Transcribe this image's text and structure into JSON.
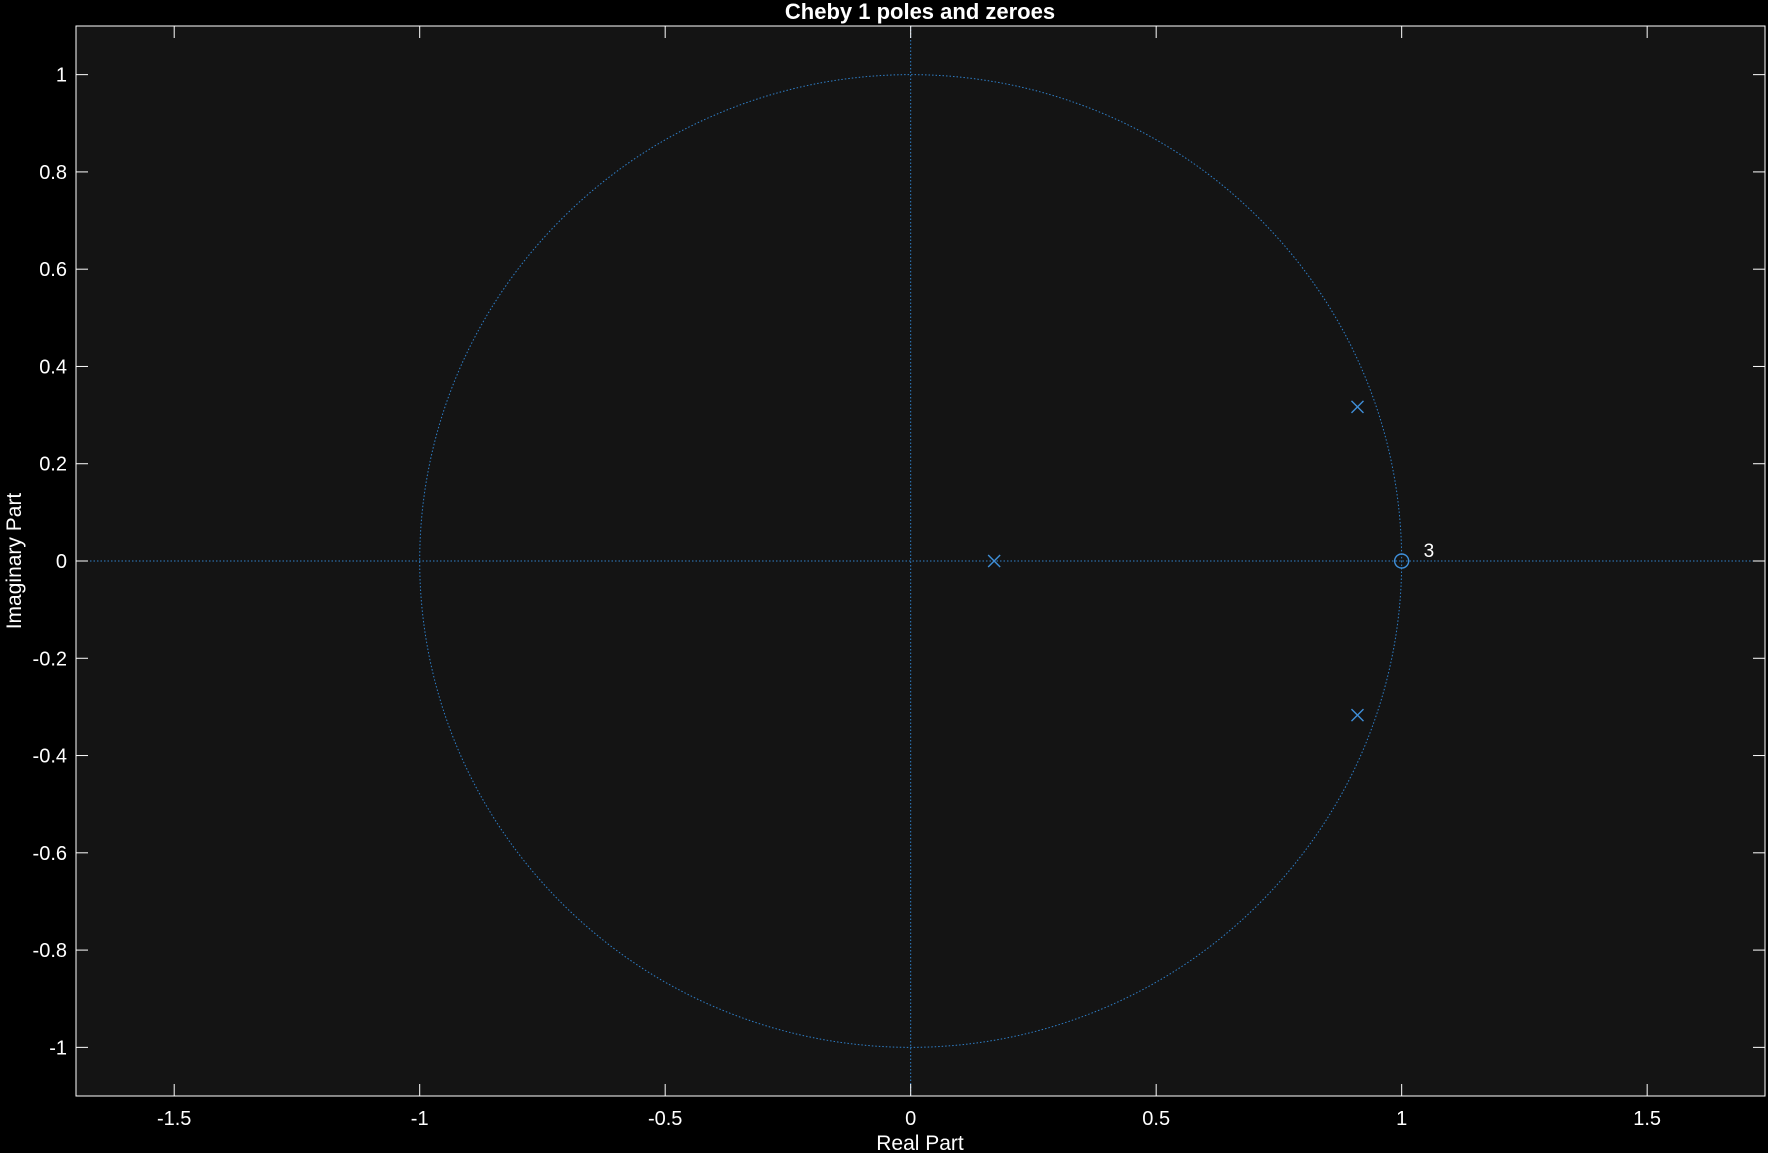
{
  "chart_data": {
    "type": "scatter",
    "title": "Cheby 1 poles and zeroes",
    "xlabel": "Real Part",
    "ylabel": "Imaginary Part",
    "xlim": [
      -1.7,
      1.74
    ],
    "ylim": [
      -1.1,
      1.1
    ],
    "xticks": [
      -1.5,
      -1,
      -0.5,
      0,
      0.5,
      1,
      1.5
    ],
    "xtick_labels": [
      "-1.5",
      "-1",
      "-0.5",
      "0",
      "0.5",
      "1",
      "1.5"
    ],
    "yticks": [
      -1,
      -0.8,
      -0.6,
      -0.4,
      -0.2,
      0,
      0.2,
      0.4,
      0.6,
      0.8,
      1
    ],
    "ytick_labels": [
      "-1",
      "-0.8",
      "-0.6",
      "-0.4",
      "-0.2",
      "0",
      "0.2",
      "0.4",
      "0.6",
      "0.8",
      "1"
    ],
    "grid": false,
    "unit_circle": true,
    "series": [
      {
        "marker": "x",
        "points": [
          [
            0.17,
            0.0
          ],
          [
            0.91,
            0.317
          ],
          [
            0.91,
            -0.317
          ]
        ]
      },
      {
        "marker": "o",
        "points": [
          [
            1.0,
            0.0
          ]
        ],
        "multiplicity_labels": [
          "3"
        ]
      }
    ]
  },
  "colors": {
    "figure_background": "#000000",
    "axes_background": "#141414",
    "axes_line": "#ffffff",
    "text": "#ffffff",
    "marker": "#3f8fd9",
    "reference_line": "#2f7fc8"
  }
}
